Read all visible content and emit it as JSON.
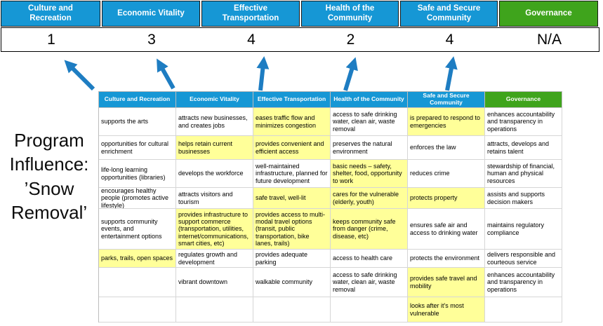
{
  "colors": {
    "header_blue": "#1697D5",
    "header_green": "#3FA41C",
    "highlight_yellow": "#FFFF99",
    "arrow_blue": "#1E7DC2"
  },
  "program_label": {
    "lines": [
      "Program",
      "Influence:",
      "’Snow",
      "Removal’"
    ]
  },
  "columns": [
    {
      "label": "Culture and Recreation",
      "score": "1",
      "accent": "blue"
    },
    {
      "label": "Economic Vitality",
      "score": "3",
      "accent": "blue"
    },
    {
      "label": "Effective Transportation",
      "score": "4",
      "accent": "blue"
    },
    {
      "label": "Health of the Community",
      "score": "2",
      "accent": "blue"
    },
    {
      "label": "Safe and Secure Community",
      "score": "4",
      "accent": "blue"
    },
    {
      "label": "Governance",
      "score": "N/A",
      "accent": "green"
    }
  ],
  "table": {
    "headers": [
      "Culture and Recreation",
      "Economic Vitality",
      "Effective Transportation",
      "Health of the Community",
      "Safe and Secure Community",
      "Governance"
    ],
    "rows": [
      [
        {
          "text": "supports the arts",
          "highlight": false
        },
        {
          "text": "attracts new businesses, and creates jobs",
          "highlight": false
        },
        {
          "text": "eases traffic flow and minimizes congestion",
          "highlight": true
        },
        {
          "text": "access to safe drinking water, clean air, waste removal",
          "highlight": false
        },
        {
          "text": "is prepared to respond to emergencies",
          "highlight": true
        },
        {
          "text": "enhances accountability and transparency in operations",
          "highlight": false
        }
      ],
      [
        {
          "text": "opportunities for cultural enrichment",
          "highlight": false
        },
        {
          "text": "helps retain current businesses",
          "highlight": true
        },
        {
          "text": "provides convenient and efficient access",
          "highlight": true
        },
        {
          "text": "preserves the natural environment",
          "highlight": false
        },
        {
          "text": "enforces the law",
          "highlight": false
        },
        {
          "text": "attracts, develops and retains talent",
          "highlight": false
        }
      ],
      [
        {
          "text": "life-long learning opportunities (libraries)",
          "highlight": false
        },
        {
          "text": "develops the workforce",
          "highlight": false
        },
        {
          "text": "well-maintained infrastructure, planned for future development",
          "highlight": false
        },
        {
          "text": "basic needs – safety, shelter, food, opportunity to work",
          "highlight": true
        },
        {
          "text": "reduces crime",
          "highlight": false
        },
        {
          "text": "stewardship of financial, human and physical resources",
          "highlight": false
        }
      ],
      [
        {
          "text": "encourages healthy people (promotes active lifestyle)",
          "highlight": false
        },
        {
          "text": "attracts visitors and tourism",
          "highlight": false
        },
        {
          "text": "safe travel, well-lit",
          "highlight": true
        },
        {
          "text": "cares for the vulnerable (elderly, youth)",
          "highlight": true
        },
        {
          "text": "protects property",
          "highlight": true
        },
        {
          "text": "assists and supports decision makers",
          "highlight": false
        }
      ],
      [
        {
          "text": "supports community events, and entertainment options",
          "highlight": false
        },
        {
          "text": "provides infrastructure to support commerce (transportation, utilities, internet/communications, smart cities, etc)",
          "highlight": true
        },
        {
          "text": "provides access to multi-modal travel options (transit, public transportation, bike lanes, trails)",
          "highlight": true
        },
        {
          "text": "keeps community safe from danger (crime, disease, etc)",
          "highlight": true
        },
        {
          "text": "ensures safe air and access to drinking water",
          "highlight": false
        },
        {
          "text": "maintains regulatory compliance",
          "highlight": false
        }
      ],
      [
        {
          "text": "parks, trails, open spaces",
          "highlight": true
        },
        {
          "text": "regulates growth and development",
          "highlight": false
        },
        {
          "text": "provides adequate parking",
          "highlight": false
        },
        {
          "text": "access to health care",
          "highlight": false
        },
        {
          "text": "protects the environment",
          "highlight": false
        },
        {
          "text": "delivers responsible and courteous service",
          "highlight": false
        }
      ],
      [
        {
          "text": "",
          "highlight": false
        },
        {
          "text": "vibrant downtown",
          "highlight": false
        },
        {
          "text": "walkable community",
          "highlight": false
        },
        {
          "text": "access to safe drinking water, clean air, waste removal",
          "highlight": false
        },
        {
          "text": "provides safe travel and mobility",
          "highlight": true
        },
        {
          "text": "enhances accountability and transparency in operations",
          "highlight": false
        }
      ],
      [
        {
          "text": "",
          "highlight": false
        },
        {
          "text": "",
          "highlight": false
        },
        {
          "text": "",
          "highlight": false
        },
        {
          "text": "",
          "highlight": false
        },
        {
          "text": "looks after it's most vulnerable",
          "highlight": true
        },
        {
          "text": "",
          "highlight": false
        }
      ]
    ]
  }
}
